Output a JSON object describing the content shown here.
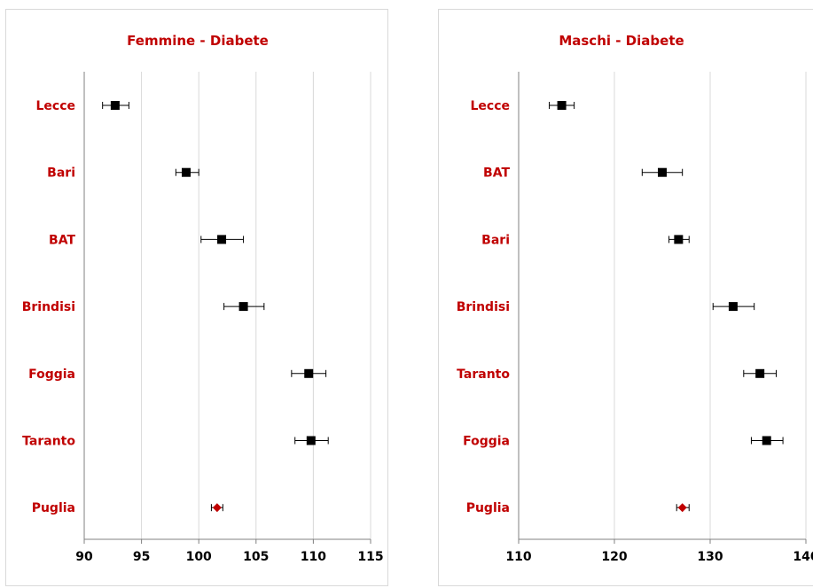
{
  "chart_data": [
    {
      "type": "scatter",
      "title": "Femmine - Diabete",
      "xlim": [
        90,
        115
      ],
      "xticks": [
        90,
        95,
        100,
        105,
        110,
        115
      ],
      "xtick_labels": [
        "90",
        "95",
        "100",
        "105",
        "110",
        "115"
      ],
      "grid": true,
      "categories": [
        "Lecce",
        "Bari",
        "BAT",
        "Brindisi",
        "Foggia",
        "Taranto",
        "Puglia"
      ],
      "values": [
        92.7,
        98.9,
        102.0,
        103.9,
        109.6,
        109.8,
        101.6
      ],
      "error_low": [
        91.6,
        98.0,
        100.2,
        102.2,
        108.1,
        108.4,
        101.1
      ],
      "error_high": [
        93.9,
        100.0,
        103.9,
        105.7,
        111.1,
        111.3,
        102.1
      ],
      "markers": [
        "square",
        "square",
        "square",
        "square",
        "square",
        "square",
        "diamond"
      ],
      "marker_colors": [
        "#000000",
        "#000000",
        "#000000",
        "#000000",
        "#000000",
        "#000000",
        "#c00000"
      ]
    },
    {
      "type": "scatter",
      "title": "Maschi - Diabete",
      "xlim": [
        110,
        140
      ],
      "xticks": [
        110,
        120,
        130,
        140
      ],
      "xtick_labels": [
        "110",
        "120",
        "130",
        "140"
      ],
      "grid": true,
      "categories": [
        "Lecce",
        "BAT",
        "Bari",
        "Brindisi",
        "Taranto",
        "Foggia",
        "Puglia"
      ],
      "values": [
        114.5,
        125.0,
        126.7,
        132.4,
        135.2,
        135.9,
        127.1
      ],
      "error_low": [
        113.2,
        122.9,
        125.7,
        130.3,
        133.5,
        134.3,
        126.5
      ],
      "error_high": [
        115.8,
        127.1,
        127.8,
        134.6,
        136.9,
        137.6,
        127.8
      ],
      "markers": [
        "square",
        "square",
        "square",
        "square",
        "square",
        "square",
        "diamond"
      ],
      "marker_colors": [
        "#000000",
        "#000000",
        "#000000",
        "#000000",
        "#000000",
        "#000000",
        "#c00000"
      ]
    }
  ]
}
